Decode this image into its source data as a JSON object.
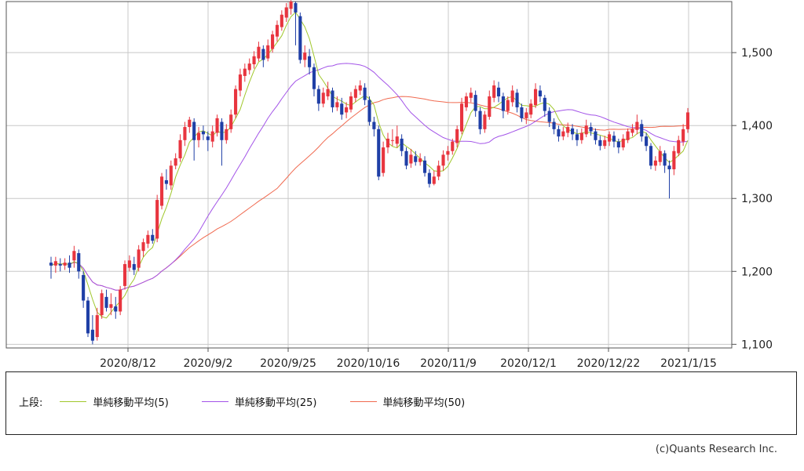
{
  "chart_data": {
    "type": "candlestick",
    "x_ticks": [
      "2020/8/12",
      "2020/9/2",
      "2020/9/25",
      "2020/10/16",
      "2020/11/9",
      "2020/12/1",
      "2020/12/22",
      "2021/1/15"
    ],
    "y_ticks": [
      "1,500",
      "1,400",
      "1,300",
      "1,200",
      "1,100"
    ],
    "ylim": [
      1095,
      1570
    ],
    "grid": true,
    "colors": {
      "up": "#e8353f",
      "down": "#1f3fa6",
      "ma5": "#a0c72b",
      "ma25": "#a354e8",
      "ma50": "#f06a50"
    },
    "candles": [
      [
        1212,
        1208,
        1220,
        1190
      ],
      [
        1208,
        1214,
        1220,
        1198
      ],
      [
        1210,
        1208,
        1218,
        1200
      ],
      [
        1208,
        1212,
        1218,
        1202
      ],
      [
        1212,
        1205,
        1222,
        1198
      ],
      [
        1215,
        1228,
        1235,
        1205
      ],
      [
        1225,
        1200,
        1230,
        1190
      ],
      [
        1195,
        1160,
        1200,
        1150
      ],
      [
        1160,
        1115,
        1165,
        1110
      ],
      [
        1120,
        1105,
        1140,
        1100
      ],
      [
        1110,
        1140,
        1150,
        1105
      ],
      [
        1140,
        1170,
        1175,
        1135
      ],
      [
        1165,
        1150,
        1175,
        1145
      ],
      [
        1150,
        1155,
        1170,
        1140
      ],
      [
        1152,
        1145,
        1165,
        1135
      ],
      [
        1145,
        1175,
        1180,
        1140
      ],
      [
        1180,
        1210,
        1215,
        1175
      ],
      [
        1205,
        1215,
        1222,
        1200
      ],
      [
        1210,
        1202,
        1220,
        1195
      ],
      [
        1205,
        1230,
        1236,
        1200
      ],
      [
        1228,
        1240,
        1245,
        1220
      ],
      [
        1238,
        1250,
        1256,
        1232
      ],
      [
        1250,
        1242,
        1258,
        1238
      ],
      [
        1245,
        1298,
        1305,
        1240
      ],
      [
        1290,
        1330,
        1335,
        1285
      ],
      [
        1325,
        1320,
        1340,
        1312
      ],
      [
        1318,
        1345,
        1352,
        1312
      ],
      [
        1345,
        1355,
        1362,
        1340
      ],
      [
        1355,
        1380,
        1388,
        1350
      ],
      [
        1380,
        1398,
        1405,
        1372
      ],
      [
        1398,
        1408,
        1412,
        1390
      ],
      [
        1405,
        1380,
        1410,
        1352
      ],
      [
        1380,
        1390,
        1398,
        1370
      ],
      [
        1392,
        1388,
        1400,
        1380
      ],
      [
        1385,
        1380,
        1392,
        1365
      ],
      [
        1378,
        1392,
        1400,
        1370
      ],
      [
        1390,
        1410,
        1415,
        1385
      ],
      [
        1405,
        1380,
        1410,
        1345
      ],
      [
        1380,
        1395,
        1402,
        1375
      ],
      [
        1395,
        1415,
        1422,
        1390
      ],
      [
        1415,
        1450,
        1455,
        1410
      ],
      [
        1448,
        1470,
        1478,
        1440
      ],
      [
        1468,
        1478,
        1485,
        1460
      ],
      [
        1476,
        1485,
        1492,
        1470
      ],
      [
        1484,
        1495,
        1502,
        1478
      ],
      [
        1492,
        1508,
        1515,
        1488
      ],
      [
        1505,
        1490,
        1510,
        1480
      ],
      [
        1492,
        1510,
        1518,
        1488
      ],
      [
        1505,
        1525,
        1530,
        1500
      ],
      [
        1522,
        1538,
        1544,
        1515
      ],
      [
        1535,
        1552,
        1558,
        1530
      ],
      [
        1548,
        1562,
        1568,
        1542
      ],
      [
        1560,
        1570,
        1572,
        1552
      ],
      [
        1568,
        1555,
        1570,
        1510
      ],
      [
        1550,
        1490,
        1555,
        1485
      ],
      [
        1490,
        1500,
        1510,
        1480
      ],
      [
        1495,
        1480,
        1505,
        1470
      ],
      [
        1480,
        1450,
        1485,
        1440
      ],
      [
        1450,
        1430,
        1455,
        1420
      ],
      [
        1430,
        1445,
        1452,
        1425
      ],
      [
        1440,
        1450,
        1460,
        1435
      ],
      [
        1448,
        1425,
        1452,
        1418
      ],
      [
        1425,
        1432,
        1440,
        1420
      ],
      [
        1430,
        1415,
        1438,
        1408
      ],
      [
        1418,
        1425,
        1432,
        1410
      ],
      [
        1422,
        1440,
        1446,
        1418
      ],
      [
        1438,
        1450,
        1455,
        1432
      ],
      [
        1448,
        1455,
        1462,
        1442
      ],
      [
        1452,
        1435,
        1458,
        1428
      ],
      [
        1435,
        1405,
        1440,
        1400
      ],
      [
        1405,
        1395,
        1412,
        1385
      ],
      [
        1395,
        1330,
        1400,
        1325
      ],
      [
        1335,
        1370,
        1378,
        1330
      ],
      [
        1370,
        1382,
        1390,
        1362
      ],
      [
        1380,
        1380,
        1395,
        1372
      ],
      [
        1375,
        1385,
        1400,
        1370
      ],
      [
        1382,
        1365,
        1388,
        1358
      ],
      [
        1365,
        1345,
        1370,
        1340
      ],
      [
        1348,
        1360,
        1368,
        1342
      ],
      [
        1358,
        1350,
        1365,
        1345
      ],
      [
        1350,
        1355,
        1362,
        1345
      ],
      [
        1352,
        1335,
        1358,
        1330
      ],
      [
        1335,
        1320,
        1340,
        1315
      ],
      [
        1320,
        1330,
        1338,
        1318
      ],
      [
        1330,
        1345,
        1352,
        1325
      ],
      [
        1345,
        1360,
        1366,
        1338
      ],
      [
        1360,
        1365,
        1372,
        1352
      ],
      [
        1365,
        1378,
        1382,
        1360
      ],
      [
        1376,
        1395,
        1400,
        1370
      ],
      [
        1392,
        1430,
        1438,
        1388
      ],
      [
        1425,
        1440,
        1445,
        1420
      ],
      [
        1438,
        1445,
        1452,
        1432
      ],
      [
        1442,
        1420,
        1448,
        1412
      ],
      [
        1420,
        1395,
        1425,
        1388
      ],
      [
        1395,
        1415,
        1420,
        1390
      ],
      [
        1412,
        1440,
        1448,
        1408
      ],
      [
        1438,
        1455,
        1462,
        1432
      ],
      [
        1452,
        1440,
        1460,
        1432
      ],
      [
        1440,
        1420,
        1445,
        1410
      ],
      [
        1420,
        1435,
        1440,
        1415
      ],
      [
        1432,
        1448,
        1455,
        1426
      ],
      [
        1445,
        1425,
        1450,
        1418
      ],
      [
        1425,
        1410,
        1430,
        1405
      ],
      [
        1410,
        1418,
        1424,
        1402
      ],
      [
        1415,
        1430,
        1436,
        1410
      ],
      [
        1428,
        1450,
        1458,
        1424
      ],
      [
        1448,
        1440,
        1455,
        1432
      ],
      [
        1438,
        1420,
        1442,
        1412
      ],
      [
        1420,
        1405,
        1425,
        1398
      ],
      [
        1405,
        1395,
        1410,
        1388
      ],
      [
        1395,
        1385,
        1400,
        1378
      ],
      [
        1385,
        1392,
        1398,
        1380
      ],
      [
        1390,
        1398,
        1404,
        1384
      ],
      [
        1396,
        1388,
        1402,
        1380
      ],
      [
        1388,
        1380,
        1395,
        1372
      ],
      [
        1380,
        1390,
        1396,
        1375
      ],
      [
        1388,
        1400,
        1408,
        1384
      ],
      [
        1398,
        1392,
        1404,
        1386
      ],
      [
        1392,
        1380,
        1396,
        1374
      ],
      [
        1380,
        1372,
        1386,
        1366
      ],
      [
        1372,
        1380,
        1386,
        1368
      ],
      [
        1378,
        1388,
        1392,
        1372
      ],
      [
        1386,
        1378,
        1392,
        1370
      ],
      [
        1378,
        1370,
        1382,
        1362
      ],
      [
        1370,
        1382,
        1388,
        1366
      ],
      [
        1380,
        1392,
        1396,
        1376
      ],
      [
        1390,
        1395,
        1402,
        1385
      ],
      [
        1394,
        1405,
        1415,
        1388
      ],
      [
        1402,
        1385,
        1408,
        1378
      ],
      [
        1385,
        1372,
        1390,
        1365
      ],
      [
        1372,
        1345,
        1376,
        1340
      ],
      [
        1345,
        1352,
        1358,
        1338
      ],
      [
        1350,
        1365,
        1372,
        1345
      ],
      [
        1362,
        1345,
        1366,
        1335
      ],
      [
        1345,
        1340,
        1352,
        1300
      ],
      [
        1340,
        1365,
        1372,
        1332
      ],
      [
        1362,
        1380,
        1386,
        1358
      ],
      [
        1378,
        1395,
        1402,
        1372
      ],
      [
        1395,
        1418,
        1424,
        1390
      ]
    ]
  },
  "legend": {
    "prefix": "上段:",
    "items": [
      {
        "label": "単純移動平均(5)",
        "color": "#a0c72b"
      },
      {
        "label": "単純移動平均(25)",
        "color": "#a354e8"
      },
      {
        "label": "単純移動平均(50)",
        "color": "#f06a50"
      }
    ]
  },
  "credit": "(c)Quants Research Inc."
}
